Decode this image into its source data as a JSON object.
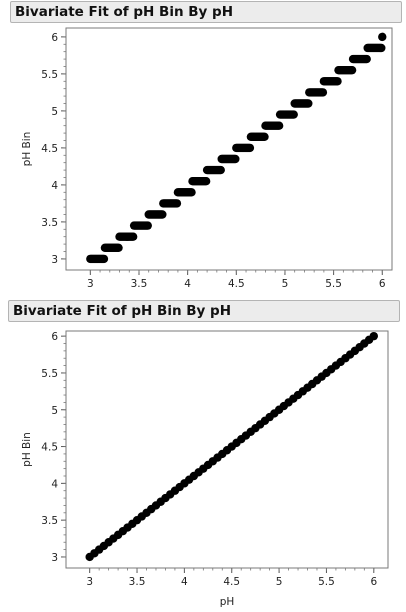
{
  "chart_data": [
    {
      "type": "scatter",
      "title": "Bivariate Fit of pH Bin By pH",
      "xlabel": "",
      "ylabel": "pH Bin",
      "xlim": [
        2.75,
        6.1
      ],
      "ylim": [
        2.85,
        6.12
      ],
      "xticks": [
        "3",
        "3.5",
        "4",
        "4.5",
        "5",
        "5.5",
        "6"
      ],
      "yticks": [
        "3",
        "3.5",
        "4",
        "4.5",
        "5",
        "5.5",
        "6"
      ],
      "grid": false,
      "bin_width": 0.15,
      "x_range": [
        3.0,
        6.0
      ],
      "description_points": "pH Bin = lower edge of 0.15-wide pH bin; points at x = 3.00 to 6.00 step 0.01"
    },
    {
      "type": "scatter",
      "title": "Bivariate Fit of pH Bin By pH",
      "xlabel": "pH",
      "ylabel": "pH Bin",
      "xlim": [
        2.75,
        6.15
      ],
      "ylim": [
        2.85,
        6.07
      ],
      "xticks": [
        "3",
        "3.5",
        "4",
        "4.5",
        "5",
        "5.5",
        "6"
      ],
      "yticks": [
        "3",
        "3.5",
        "4",
        "4.5",
        "5",
        "5.5",
        "6"
      ],
      "grid": false,
      "x_range": [
        3.0,
        6.0
      ],
      "description_points": "pH Bin = pH; points at x = 3.00 to 6.00 step 0.05"
    }
  ]
}
